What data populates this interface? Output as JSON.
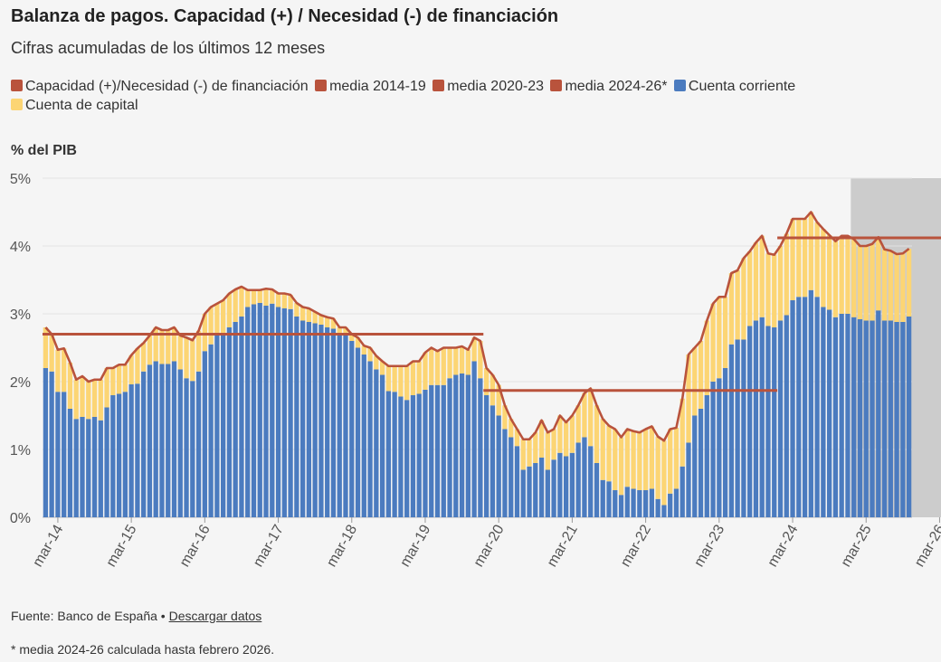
{
  "title": "Balanza de pagos. Capacidad (+) / Necesidad (-) de financiación",
  "subtitle": "Cifras acumuladas de los últimos 12 meses",
  "legend": [
    {
      "label": "Capacidad (+)/Necesidad (-) de financiación",
      "color": "#b9533c"
    },
    {
      "label": "media 2014-19",
      "color": "#b9533c"
    },
    {
      "label": "media 2020-23",
      "color": "#b9533c"
    },
    {
      "label": "media 2024-26*",
      "color": "#b9533c"
    },
    {
      "label": "Cuenta corriente",
      "color": "#4b7bbf"
    },
    {
      "label": "Cuenta de capital",
      "color": "#fcd574"
    }
  ],
  "footer": {
    "source": "Fuente: Banco de España • ",
    "link": "Descargar datos"
  },
  "note": "* media 2024-26 calculada hasta febrero 2026.",
  "chart_data": {
    "type": "bar",
    "stacked": true,
    "ylabel": "% del PIB",
    "ylim": [
      0,
      5
    ],
    "yticks": [
      "0%",
      "1%",
      "2%",
      "3%",
      "4%",
      "5%"
    ],
    "xticks": [
      "mar-14",
      "mar-15",
      "mar-16",
      "mar-17",
      "mar-18",
      "mar-19",
      "mar-20",
      "mar-21",
      "mar-22",
      "mar-23",
      "mar-24",
      "mar-25",
      "mar-26"
    ],
    "grid": true,
    "start_month": "2014-01",
    "shaded_period": {
      "from": "2025-01",
      "to": "2026-03",
      "color": "#cccccc"
    },
    "series": [
      {
        "name": "Cuenta corriente",
        "color": "#4b7bbf",
        "values": [
          2.2,
          2.15,
          1.85,
          1.85,
          1.6,
          1.45,
          1.48,
          1.45,
          1.48,
          1.43,
          1.62,
          1.8,
          1.82,
          1.85,
          1.96,
          1.97,
          2.15,
          2.25,
          2.3,
          2.26,
          2.26,
          2.3,
          2.18,
          2.05,
          2.01,
          2.15,
          2.45,
          2.55,
          2.68,
          2.7,
          2.8,
          2.88,
          2.96,
          3.1,
          3.14,
          3.16,
          3.12,
          3.15,
          3.1,
          3.08,
          3.07,
          2.96,
          2.9,
          2.88,
          2.86,
          2.84,
          2.8,
          2.78,
          2.72,
          2.7,
          2.6,
          2.5,
          2.4,
          2.3,
          2.18,
          2.1,
          1.86,
          1.85,
          1.78,
          1.73,
          1.8,
          1.82,
          1.88,
          1.95,
          1.95,
          1.95,
          2.05,
          2.1,
          2.12,
          2.1,
          2.3,
          2.05,
          1.8,
          1.65,
          1.5,
          1.3,
          1.18,
          1.05,
          0.7,
          0.75,
          0.8,
          0.88,
          0.7,
          0.85,
          0.95,
          0.9,
          0.95,
          1.1,
          1.18,
          1.05,
          0.8,
          0.55,
          0.53,
          0.4,
          0.33,
          0.45,
          0.42,
          0.4,
          0.4,
          0.42,
          0.27,
          0.18,
          0.35,
          0.42,
          0.75,
          1.1,
          1.5,
          1.6,
          1.8,
          2.0,
          2.05,
          2.2,
          2.55,
          2.62,
          2.62,
          2.82,
          2.9,
          2.95,
          2.82,
          2.8,
          2.9,
          2.98,
          3.2,
          3.25,
          3.25,
          3.35,
          3.25,
          3.1,
          3.06,
          2.95,
          3.0,
          3.0,
          2.95,
          2.92,
          2.9,
          2.9,
          3.05,
          2.9,
          2.9,
          2.88,
          2.88,
          2.96
        ]
      },
      {
        "name": "Cuenta de capital",
        "color": "#fcd574",
        "values": [
          0.6,
          0.55,
          0.62,
          0.64,
          0.68,
          0.58,
          0.6,
          0.55,
          0.55,
          0.6,
          0.58,
          0.4,
          0.43,
          0.4,
          0.43,
          0.52,
          0.42,
          0.43,
          0.5,
          0.5,
          0.5,
          0.5,
          0.5,
          0.6,
          0.6,
          0.6,
          0.55,
          0.55,
          0.47,
          0.5,
          0.5,
          0.48,
          0.44,
          0.25,
          0.21,
          0.19,
          0.25,
          0.21,
          0.2,
          0.22,
          0.21,
          0.2,
          0.2,
          0.2,
          0.17,
          0.14,
          0.15,
          0.15,
          0.08,
          0.1,
          0.1,
          0.15,
          0.13,
          0.2,
          0.2,
          0.2,
          0.37,
          0.38,
          0.45,
          0.5,
          0.5,
          0.48,
          0.55,
          0.55,
          0.5,
          0.55,
          0.45,
          0.4,
          0.4,
          0.37,
          0.35,
          0.55,
          0.4,
          0.45,
          0.45,
          0.35,
          0.27,
          0.25,
          0.45,
          0.4,
          0.45,
          0.55,
          0.55,
          0.45,
          0.55,
          0.5,
          0.55,
          0.55,
          0.65,
          0.85,
          0.85,
          0.9,
          0.82,
          0.9,
          0.85,
          0.85,
          0.85,
          0.85,
          0.9,
          0.92,
          0.92,
          0.95,
          0.95,
          0.9,
          1.0,
          1.3,
          1.0,
          1.0,
          1.1,
          1.15,
          1.2,
          1.05,
          1.05,
          1.02,
          1.2,
          1.1,
          1.15,
          1.2,
          1.07,
          1.07,
          1.1,
          1.2,
          1.2,
          1.15,
          1.15,
          1.15,
          1.1,
          1.15,
          1.1,
          1.12,
          1.15,
          1.15,
          1.15,
          1.08,
          1.1,
          1.13,
          1.08,
          1.05,
          1.03,
          1.0,
          1.01,
          1.0
        ]
      }
    ],
    "line": {
      "name": "Capacidad (+)/Necesidad (-) de financiación",
      "color": "#b9533c"
    },
    "averages": [
      {
        "name": "media 2014-19",
        "value": 2.7,
        "from": "2014-01",
        "to": "2019-12"
      },
      {
        "name": "media 2020-23",
        "value": 1.87,
        "from": "2020-01",
        "to": "2023-12"
      },
      {
        "name": "media 2024-26*",
        "value": 4.12,
        "from": "2024-01",
        "to": "2026-03"
      }
    ]
  }
}
